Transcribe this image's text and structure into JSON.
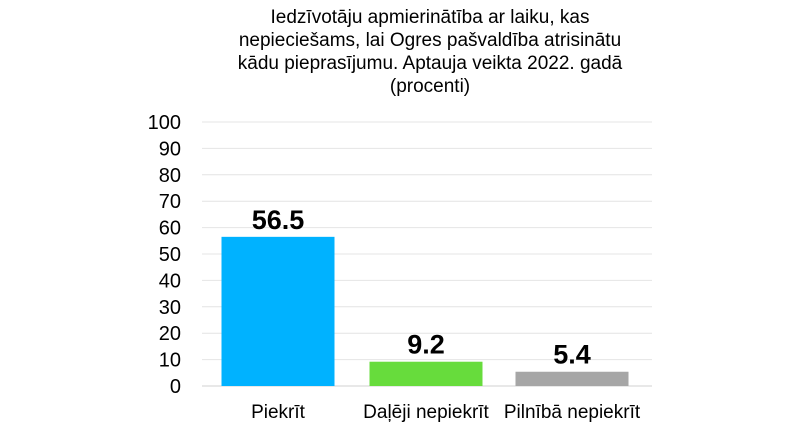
{
  "chart_data": {
    "type": "bar",
    "title_lines": [
      "Iedzīvotāju apmierinātība ar laiku, kas",
      "nepieciešams, lai Ogres pašvaldība atrisinātu",
      "kādu pieprasījumu. Aptauja veikta 2022. gadā",
      "(procenti)"
    ],
    "categories": [
      "Piekrīt",
      "Daļēji nepiekrīt",
      "Pilnībā nepiekrīt"
    ],
    "values": [
      56.5,
      9.2,
      5.4
    ],
    "value_labels": [
      "56.5",
      "9.2",
      "5.4"
    ],
    "colors": [
      "#00b2ff",
      "#67dc3c",
      "#a6a6a6"
    ],
    "ylim": [
      0,
      100
    ],
    "yticks": [
      0,
      10,
      20,
      30,
      40,
      50,
      60,
      70,
      80,
      90,
      100
    ],
    "grid": true,
    "legend": "none"
  }
}
